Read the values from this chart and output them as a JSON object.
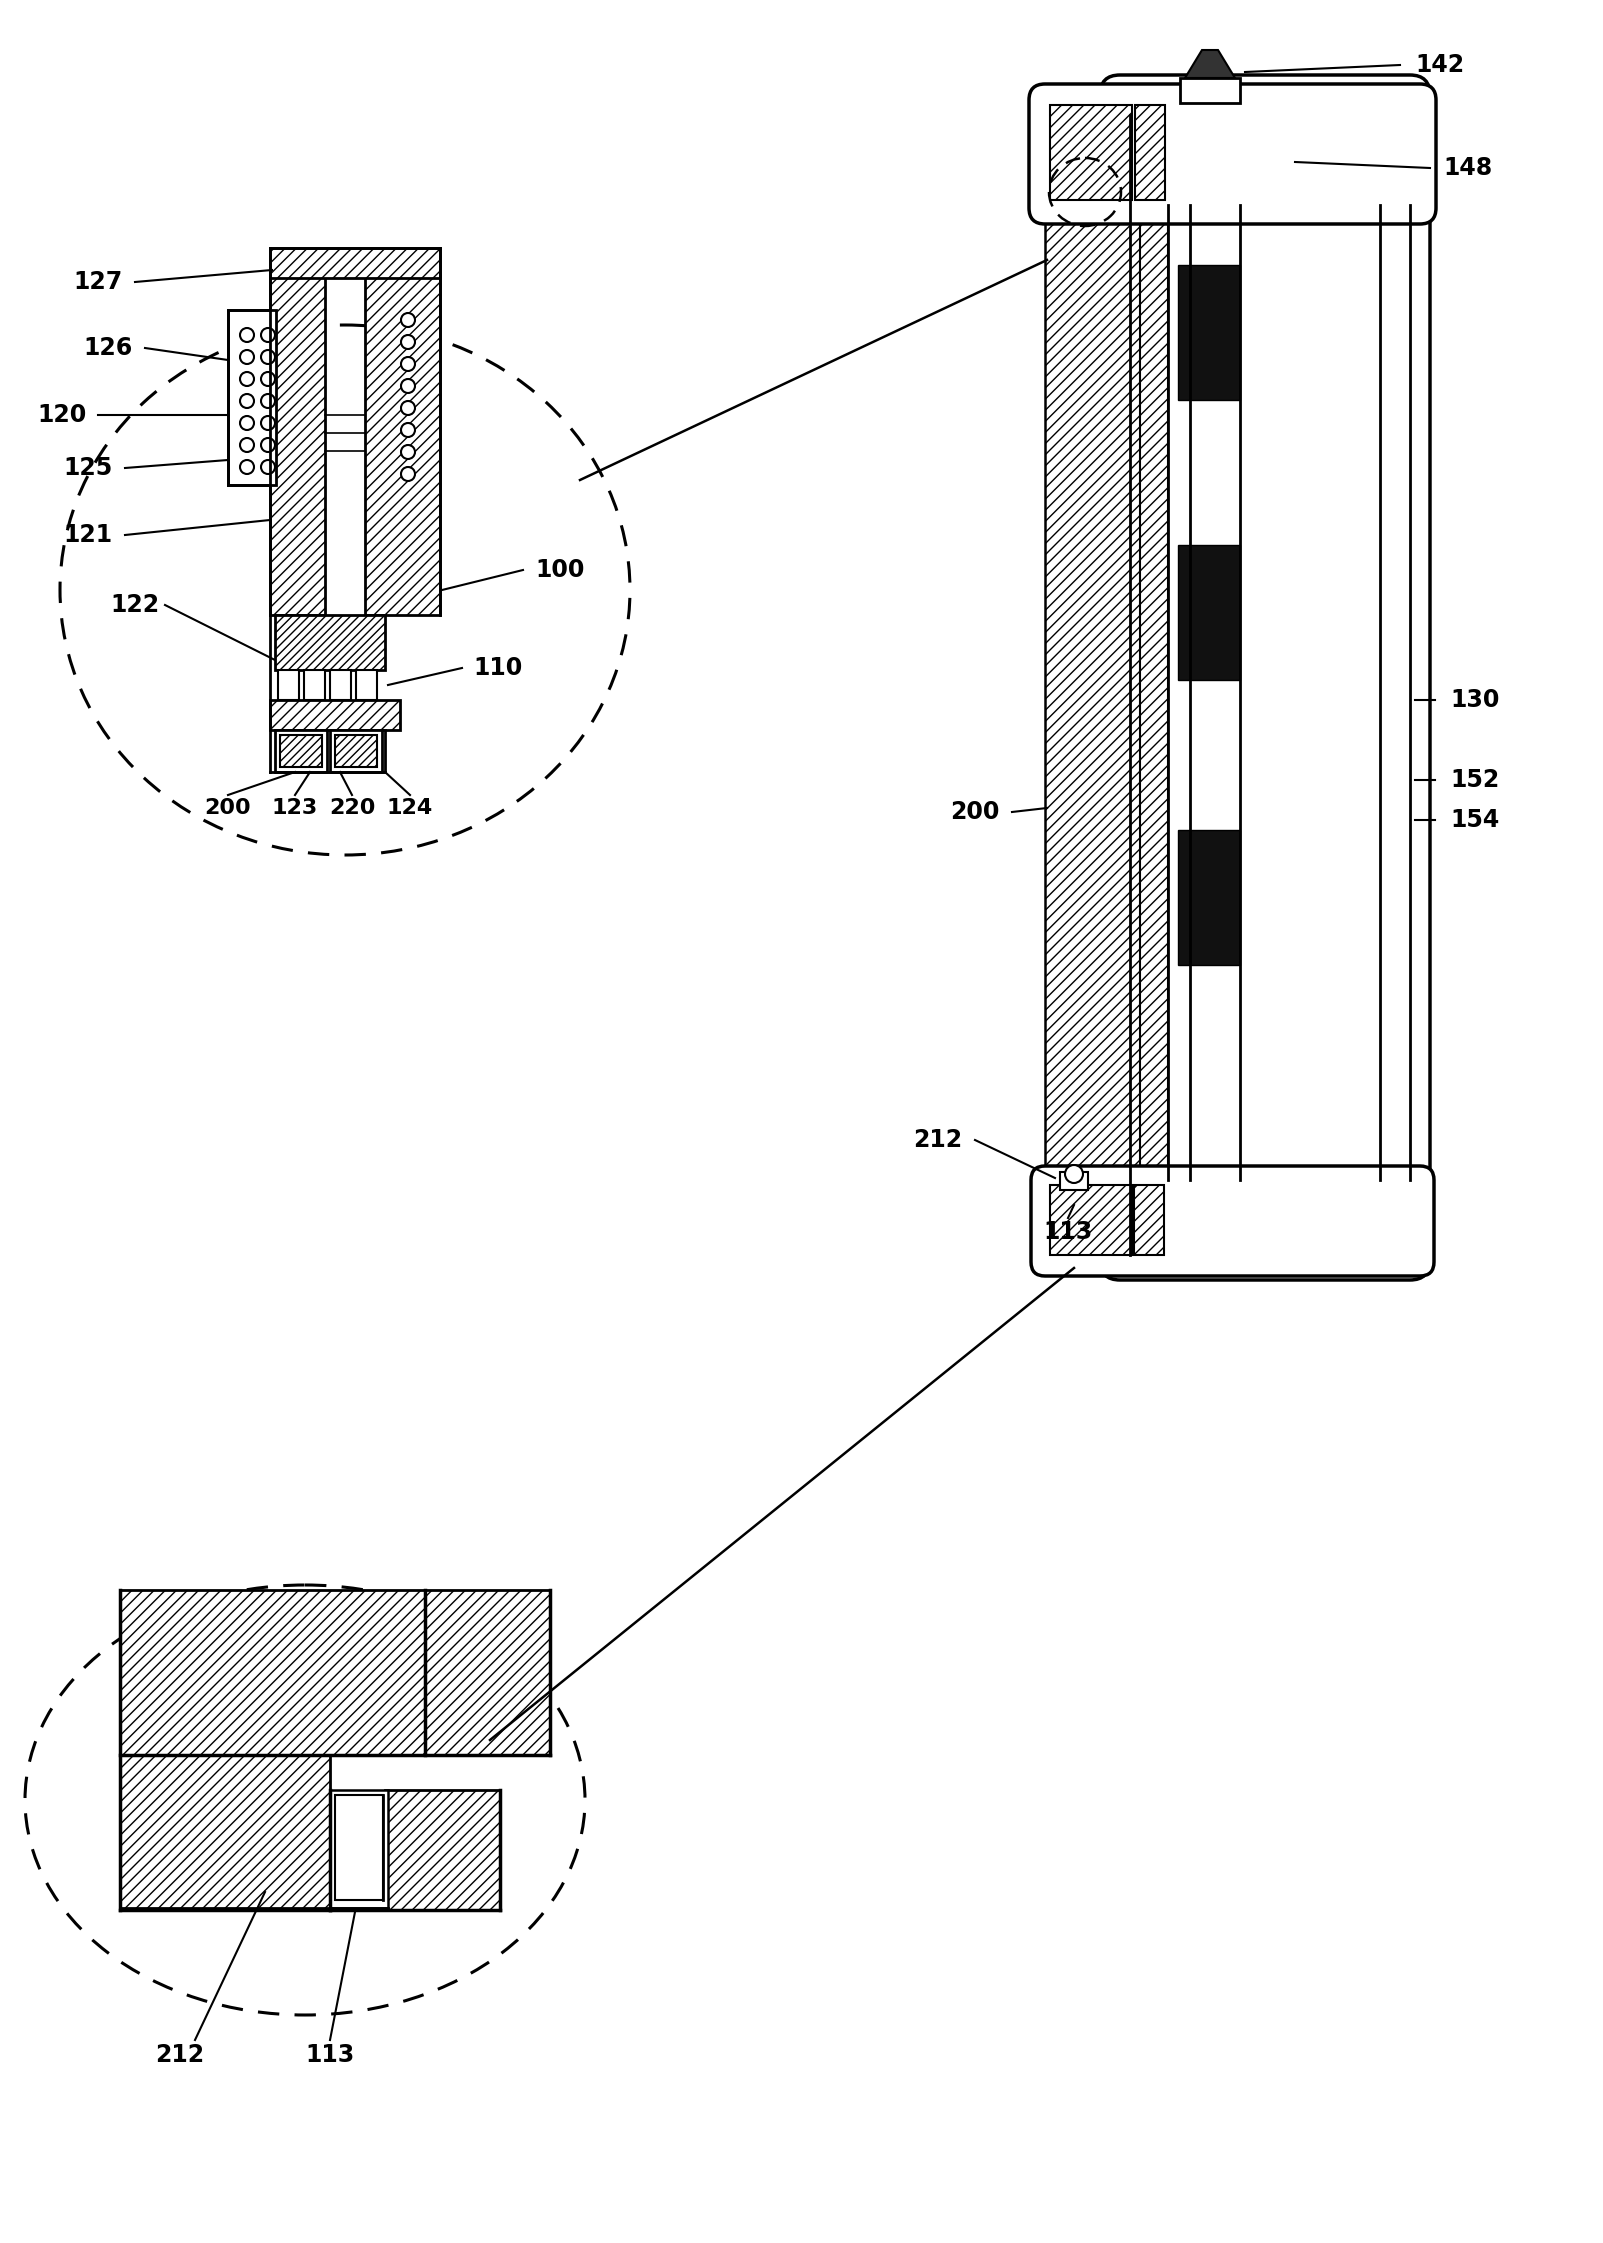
{
  "bg_color": "#ffffff",
  "lc": "#000000",
  "fs_label": 17,
  "fw_label": "bold"
}
